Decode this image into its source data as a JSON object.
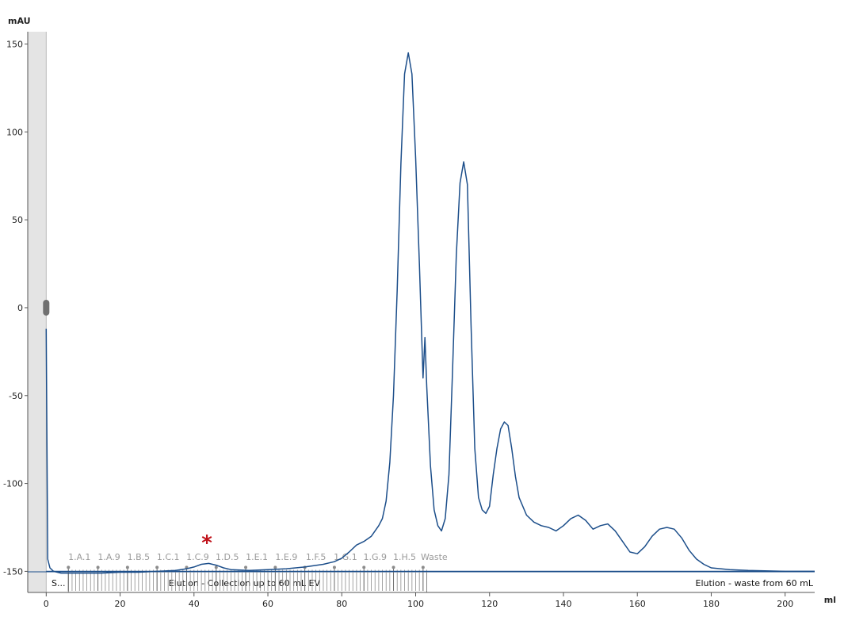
{
  "chart_data": {
    "type": "line",
    "ylabel": "mAU",
    "xlabel": "ml",
    "xlim": [
      -5,
      208
    ],
    "ylim": [
      -162,
      157
    ],
    "x_ticks": [
      0,
      20,
      40,
      60,
      80,
      100,
      120,
      140,
      160,
      180,
      200
    ],
    "y_ticks": [
      150,
      100,
      50,
      0,
      -50,
      -100,
      -150
    ],
    "colors": {
      "trace": "#1c4e8a",
      "fractions": "#8c8c8c",
      "asterisk": "#c0121a"
    },
    "series": [
      {
        "x": [
          0,
          0.4,
          1,
          2,
          4,
          6,
          10,
          15,
          20,
          25,
          30,
          35,
          38,
          40,
          42,
          44,
          46,
          48,
          50,
          55,
          60,
          65,
          70,
          75,
          78,
          80,
          82,
          84,
          86,
          88,
          90,
          91,
          92,
          93,
          94,
          95,
          96,
          97,
          98,
          99,
          100,
          101,
          102,
          102.5,
          103,
          104,
          105,
          106,
          107,
          108,
          109,
          110,
          111,
          112,
          113,
          114,
          115,
          116,
          117,
          118,
          119,
          120,
          121,
          122,
          123,
          124,
          125,
          126,
          127,
          128,
          130,
          132,
          134,
          136,
          138,
          140,
          142,
          144,
          146,
          148,
          150,
          152,
          154,
          156,
          158,
          160,
          162,
          164,
          166,
          168,
          170,
          172,
          174,
          176,
          178,
          180,
          185,
          190,
          200,
          208
        ],
        "y": [
          -12,
          -143,
          -148,
          -150,
          -151,
          -151,
          -151,
          -151,
          -150.5,
          -150.5,
          -150,
          -149.5,
          -148.5,
          -147.5,
          -146,
          -145.5,
          -146.5,
          -148,
          -149,
          -149.5,
          -149,
          -148.5,
          -147.5,
          -146,
          -144.5,
          -142.5,
          -139,
          -135,
          -133,
          -130,
          -124,
          -120,
          -110,
          -88,
          -50,
          10,
          82,
          133,
          145,
          133,
          85,
          25,
          -40,
          -17,
          -45,
          -90,
          -115,
          -124,
          -127,
          -120,
          -95,
          -35,
          30,
          71,
          83,
          70,
          -10,
          -80,
          -108,
          -115,
          -117,
          -113,
          -95,
          -80,
          -69,
          -65,
          -67,
          -80,
          -96,
          -108,
          -118,
          -122,
          -124,
          -125,
          -127,
          -124,
          -120,
          -118,
          -121,
          -126,
          -124,
          -123,
          -127,
          -133,
          -139,
          -140,
          -136,
          -130,
          -126,
          -125,
          -126,
          -131,
          -138,
          -143,
          -146,
          -148,
          -149,
          -149.5,
          -150,
          -150
        ]
      }
    ],
    "baseline_y": -150,
    "fraction_labels": [
      {
        "label": "1.A.1",
        "x": 6
      },
      {
        "label": "1.A.9",
        "x": 14
      },
      {
        "label": "1.B.5",
        "x": 22
      },
      {
        "label": "1.C.1",
        "x": 30
      },
      {
        "label": "1.C.9",
        "x": 38
      },
      {
        "label": "1.D.5",
        "x": 46
      },
      {
        "label": "1.E.1",
        "x": 54
      },
      {
        "label": "1.E.9",
        "x": 62
      },
      {
        "label": "1.F.5",
        "x": 70
      },
      {
        "label": "1.G.1",
        "x": 78
      },
      {
        "label": "1.G.9",
        "x": 86
      },
      {
        "label": "1.H.5",
        "x": 94
      },
      {
        "label": "Waste",
        "x": 102
      }
    ],
    "fraction_range": [
      6,
      103
    ],
    "fraction_step": 1,
    "blocks": [
      {
        "label": "S...",
        "start": -5,
        "end": 6
      },
      {
        "label": "Elution - Collection up to 60 mL EV",
        "start": 6,
        "end": 103
      },
      {
        "label": "Elution - waste from 60 mL",
        "start": 103,
        "end": 208
      }
    ],
    "annotations": [
      {
        "text": "*",
        "x": 43.5
      }
    ]
  }
}
